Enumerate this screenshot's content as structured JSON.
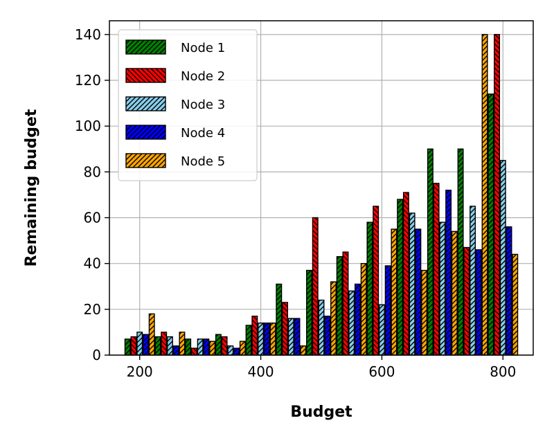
{
  "chart_data": {
    "type": "bar",
    "title": "",
    "xlabel": "Budget",
    "ylabel": "Remaining budget",
    "xlim": [
      150,
      850
    ],
    "ylim": [
      0,
      146
    ],
    "xticks": [
      200,
      400,
      600,
      800
    ],
    "yticks": [
      0,
      20,
      40,
      60,
      80,
      100,
      120,
      140
    ],
    "grid": true,
    "legend_position": "top-left",
    "group_centers": [
      200,
      250,
      300,
      350,
      400,
      450,
      500,
      550,
      600,
      650,
      700,
      750,
      800
    ],
    "bar_width": 10,
    "series": [
      {
        "name": "Node 1",
        "color": "#008000",
        "hatch": "diagonal-up",
        "values": [
          7,
          8,
          7,
          9,
          13,
          31,
          37,
          43,
          58,
          68,
          90,
          90,
          114
        ]
      },
      {
        "name": "Node 2",
        "color": "#ff0000",
        "hatch": "diagonal-down",
        "values": [
          8,
          10,
          3,
          8,
          17,
          23,
          60,
          45,
          65,
          71,
          75,
          47,
          140
        ]
      },
      {
        "name": "Node 3",
        "color": "#87ceeb",
        "hatch": "diagonal-up",
        "values": [
          10,
          8,
          7,
          4,
          14,
          16,
          24,
          28,
          22,
          62,
          58,
          65,
          85
        ]
      },
      {
        "name": "Node 4",
        "color": "#0000ff",
        "hatch": "diagonal-up",
        "values": [
          9,
          4,
          7,
          3,
          14,
          16,
          17,
          31,
          39,
          55,
          72,
          46,
          56
        ]
      },
      {
        "name": "Node 5",
        "color": "#ffa500",
        "hatch": "diagonal-up",
        "values": [
          18,
          10,
          6,
          6,
          14,
          4,
          32,
          40,
          55,
          37,
          54,
          140,
          44
        ]
      }
    ]
  }
}
